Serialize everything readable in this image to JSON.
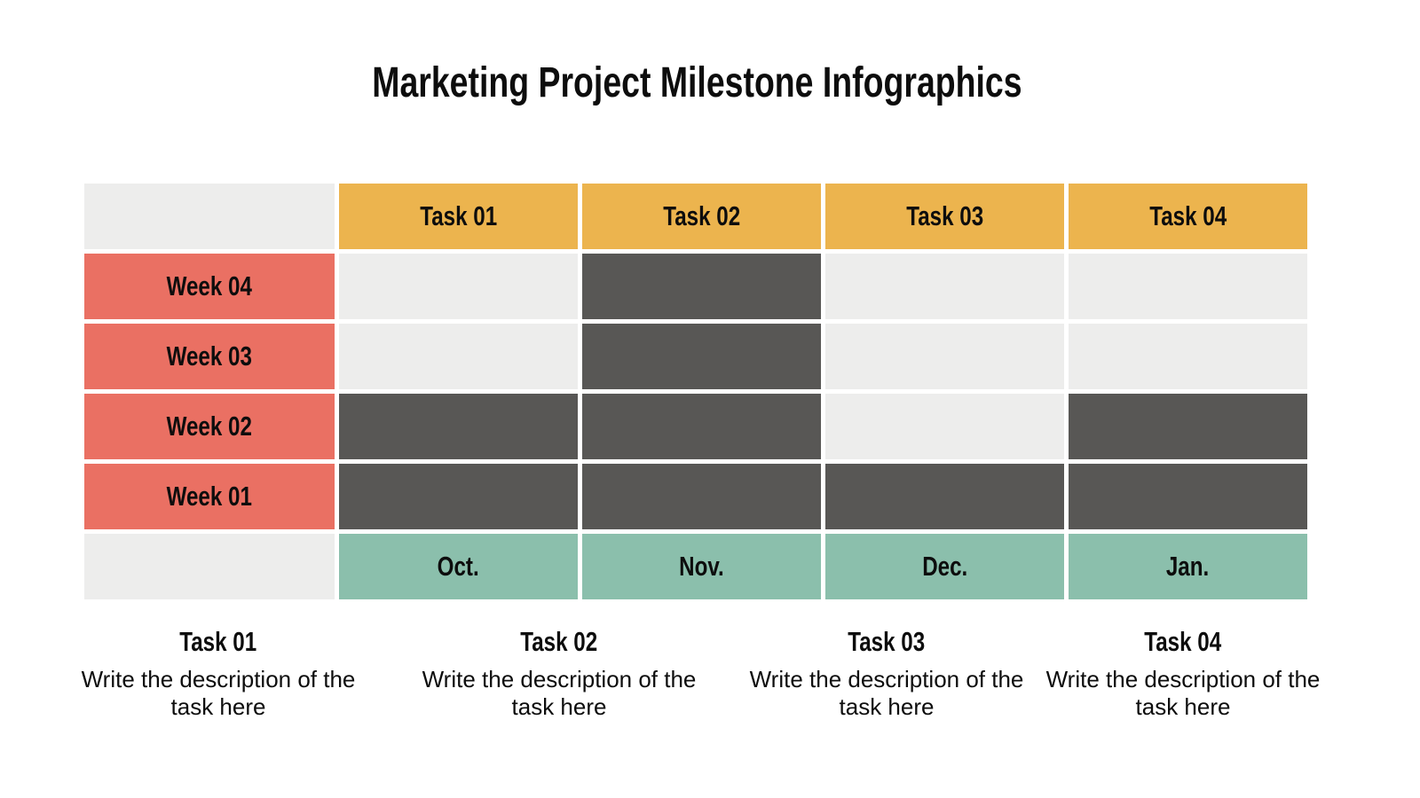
{
  "title": "Marketing Project Milestone Infographics",
  "colors": {
    "background": "#ffffff",
    "header": "#ecb44e",
    "week": "#ea7063",
    "month": "#8bbfac",
    "empty_cell": "#ededec",
    "filled_cell": "#585755",
    "text": "#0d0d0d"
  },
  "chart_data": {
    "type": "table",
    "title": "Marketing Project Milestone Infographics",
    "columns": [
      "Task 01",
      "Task 02",
      "Task 03",
      "Task 04"
    ],
    "rows": [
      "Week 04",
      "Week 03",
      "Week 02",
      "Week 01"
    ],
    "months": [
      "Oct.",
      "Nov.",
      "Dec.",
      "Jan."
    ],
    "filled": [
      [
        0,
        1,
        0,
        0
      ],
      [
        0,
        1,
        0,
        0
      ],
      [
        1,
        1,
        0,
        1
      ],
      [
        1,
        1,
        1,
        1
      ]
    ]
  },
  "descriptions": [
    {
      "title": "Task 01",
      "text": "Write the description of the task here"
    },
    {
      "title": "Task 02",
      "text": "Write the description of the task here"
    },
    {
      "title": "Task 03",
      "text": "Write the description of the task here"
    },
    {
      "title": "Task 04",
      "text": "Write the description of the task here"
    }
  ]
}
